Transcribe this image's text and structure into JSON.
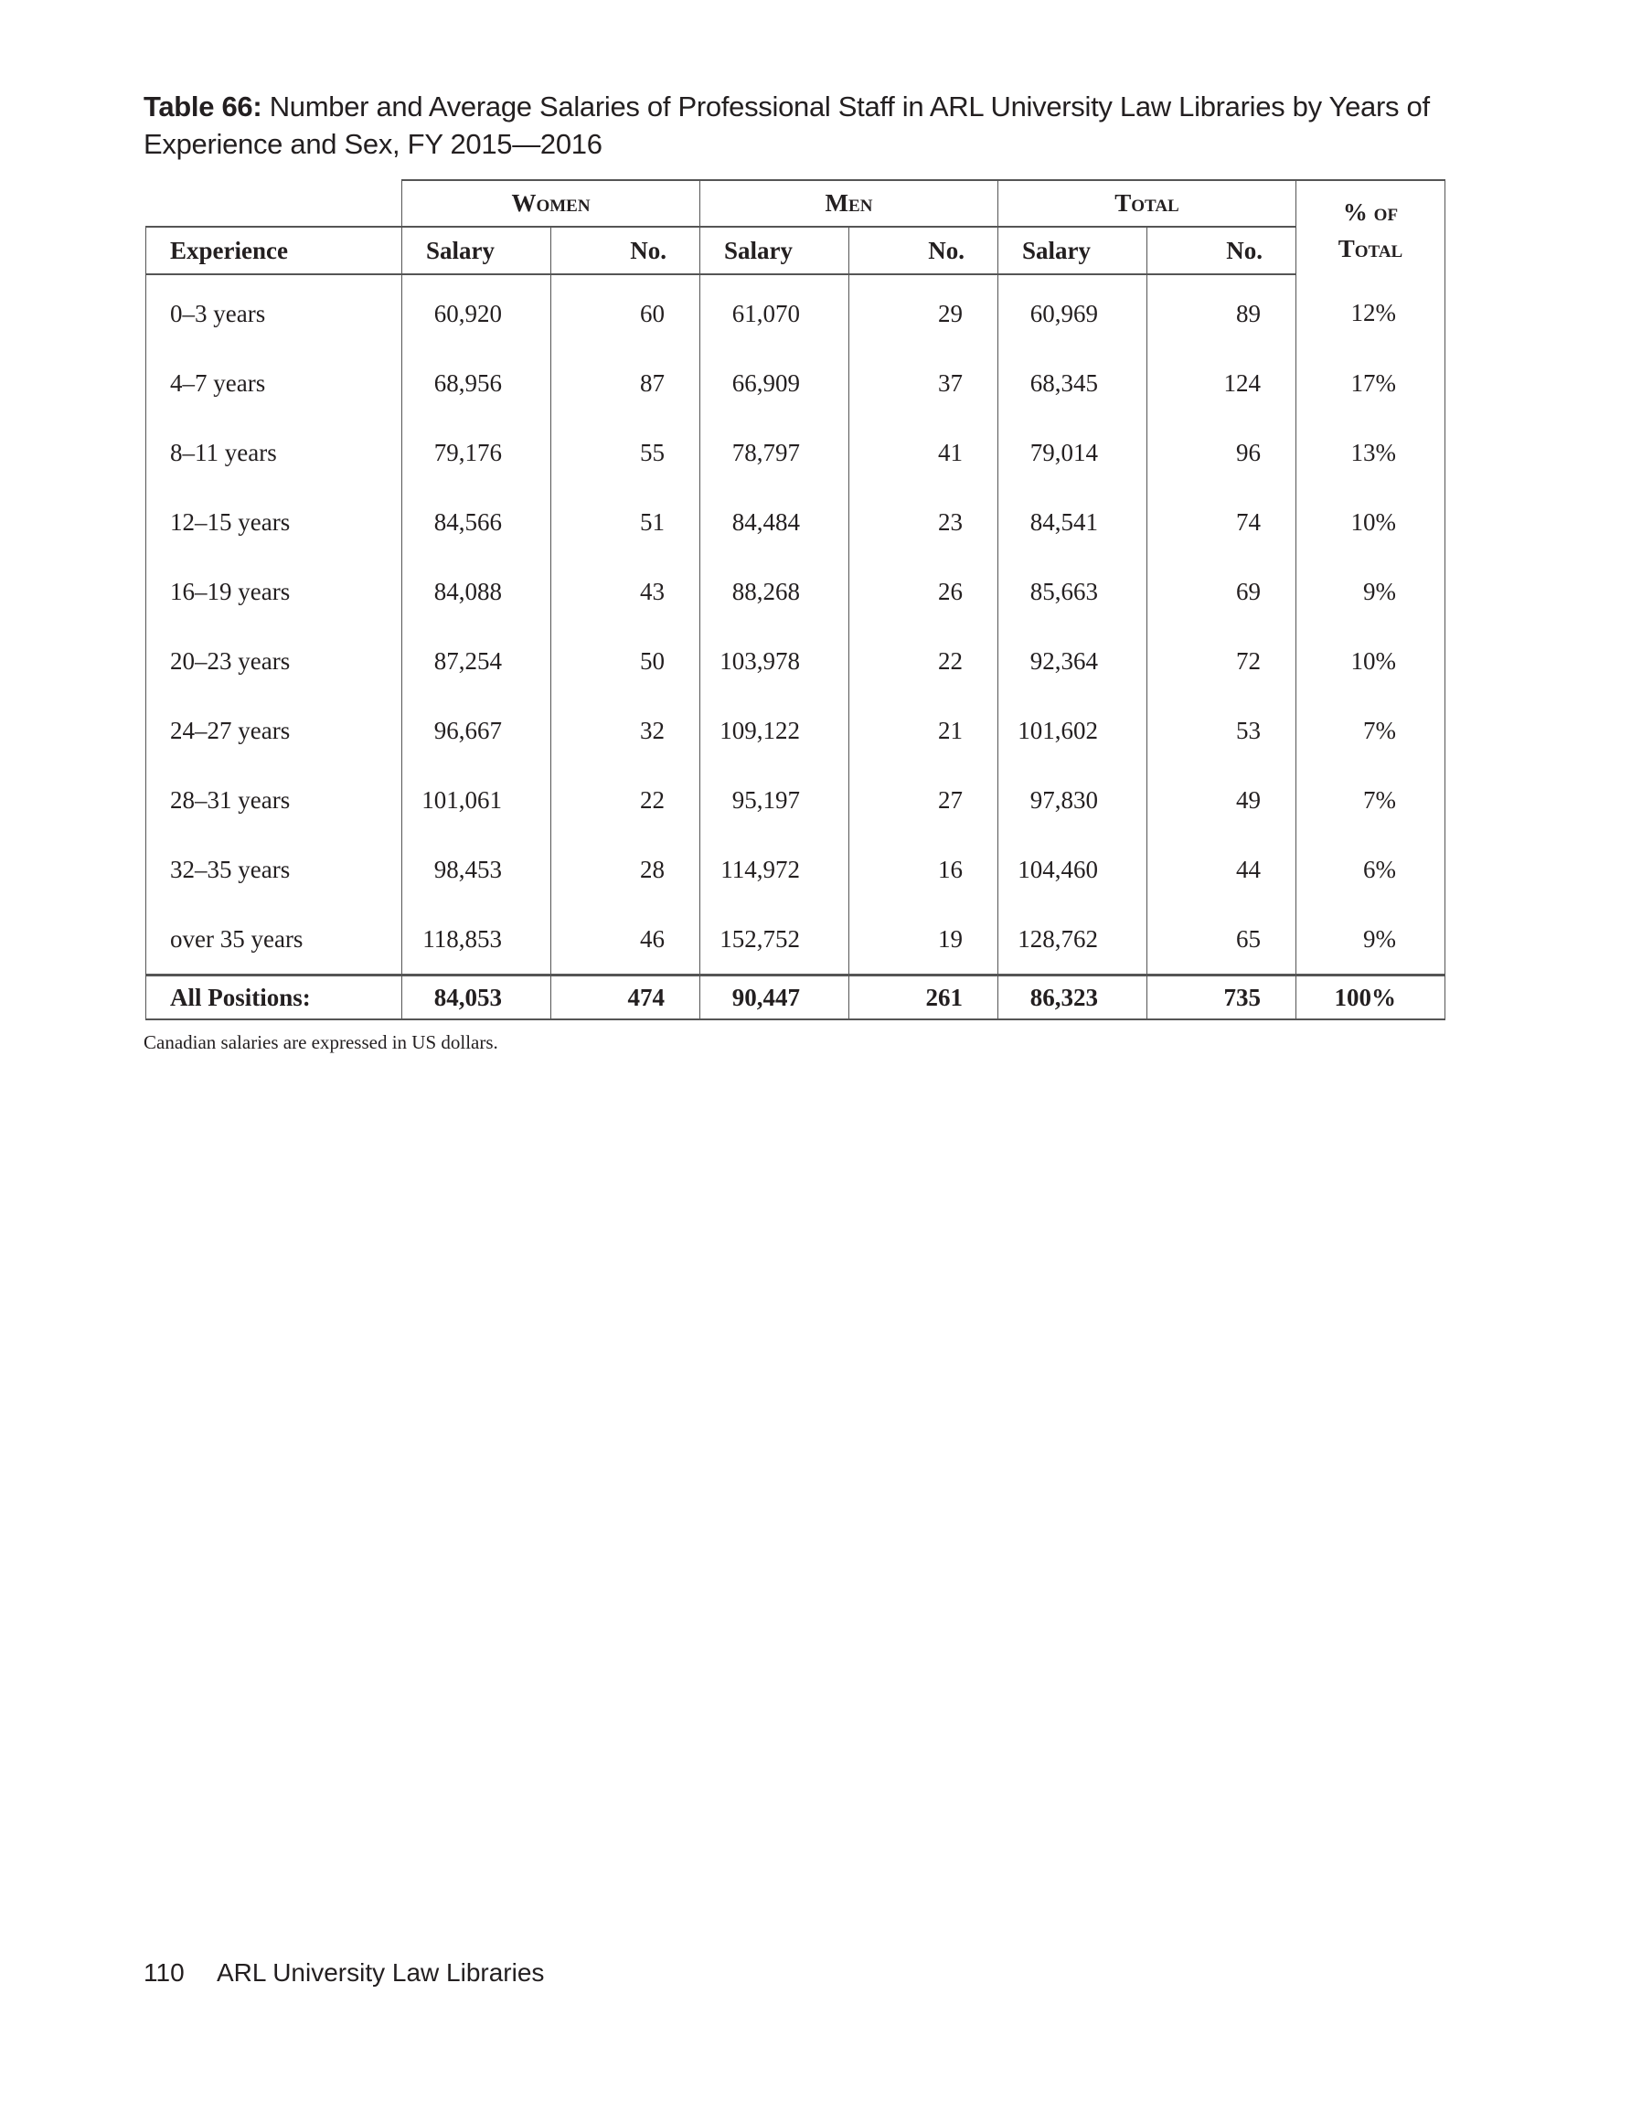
{
  "title": {
    "label": "Table 66:",
    "text": " Number and Average Salaries of Professional Staff in ARL University Law Libraries by Years of Experience and Sex, FY 2015—2016"
  },
  "table": {
    "groups": [
      "Women",
      "Men",
      "Total"
    ],
    "pct_header_line1": "% of",
    "pct_header_line2": "Total",
    "columns": [
      "Experience",
      "Salary",
      "No.",
      "Salary",
      "No.",
      "Salary",
      "No."
    ],
    "rows": [
      [
        "0–3 years",
        "60,920",
        "60",
        "61,070",
        "29",
        "60,969",
        "89",
        "12%"
      ],
      [
        "4–7 years",
        "68,956",
        "87",
        "66,909",
        "37",
        "68,345",
        "124",
        "17%"
      ],
      [
        "8–11 years",
        "79,176",
        "55",
        "78,797",
        "41",
        "79,014",
        "96",
        "13%"
      ],
      [
        "12–15 years",
        "84,566",
        "51",
        "84,484",
        "23",
        "84,541",
        "74",
        "10%"
      ],
      [
        "16–19 years",
        "84,088",
        "43",
        "88,268",
        "26",
        "85,663",
        "69",
        "9%"
      ],
      [
        "20–23 years",
        "87,254",
        "50",
        "103,978",
        "22",
        "92,364",
        "72",
        "10%"
      ],
      [
        "24–27 years",
        "96,667",
        "32",
        "109,122",
        "21",
        "101,602",
        "53",
        "7%"
      ],
      [
        "28–31 years",
        "101,061",
        "22",
        "95,197",
        "27",
        "97,830",
        "49",
        "7%"
      ],
      [
        "32–35 years",
        "98,453",
        "28",
        "114,972",
        "16",
        "104,460",
        "44",
        "6%"
      ],
      [
        "over 35 years",
        "118,853",
        "46",
        "152,752",
        "19",
        "128,762",
        "65",
        "9%"
      ]
    ],
    "total": [
      "All Positions:",
      "84,053",
      "474",
      "90,447",
      "261",
      "86,323",
      "735",
      "100%"
    ]
  },
  "note": "Canadian salaries are expressed in US dollars.",
  "footer": {
    "page_number": "110",
    "section": "ARL University Law Libraries"
  }
}
